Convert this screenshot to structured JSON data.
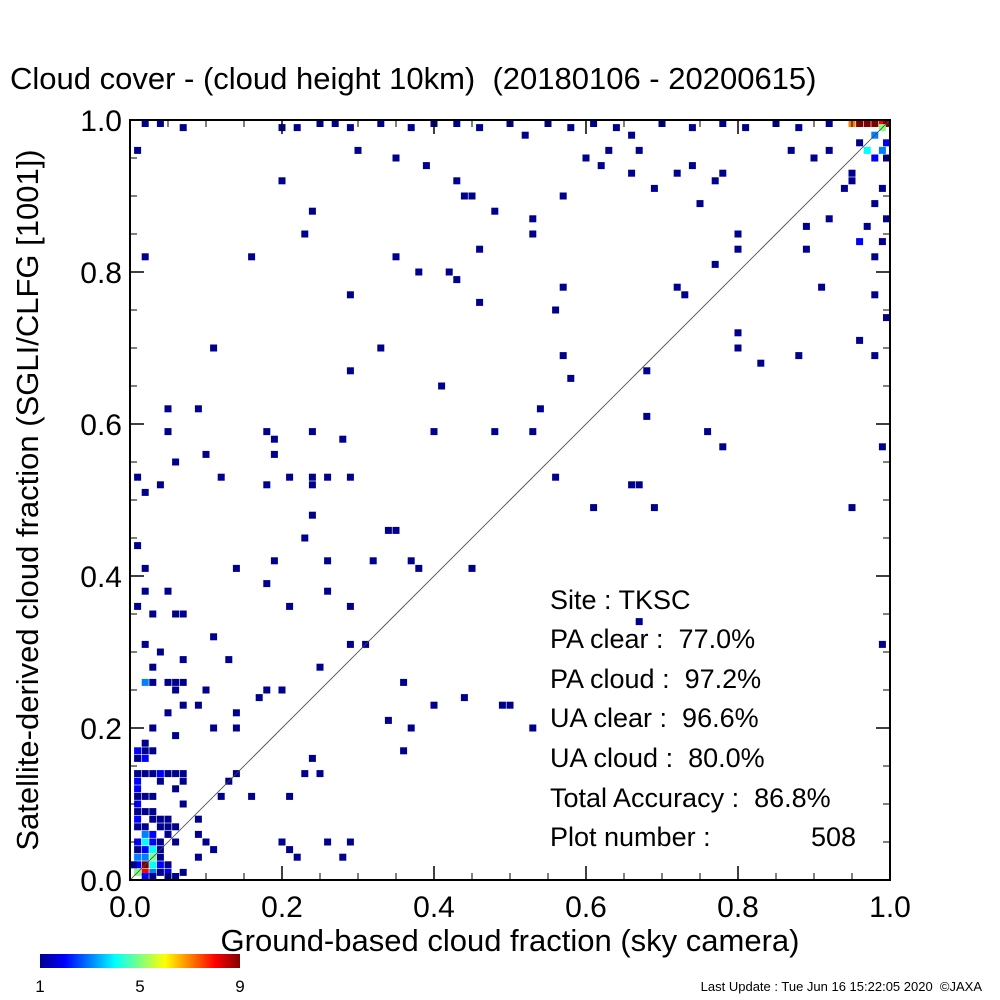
{
  "chart_data": {
    "type": "heatmap",
    "title": "Cloud cover - (cloud height 10km)  (20180106 - 20200615)",
    "xlabel": "Ground-based cloud fraction (sky camera)",
    "ylabel": "Satellite-derived cloud fraction (SGLI/CLFG [1001])",
    "xlim": [
      0,
      1
    ],
    "ylim": [
      0,
      1
    ],
    "x_ticks": [
      "0.0",
      "0.2",
      "0.4",
      "0.6",
      "0.8",
      "1.0"
    ],
    "y_ticks": [
      "0.0",
      "0.2",
      "0.4",
      "0.6",
      "0.8",
      "1.0"
    ],
    "reference_line": "y = x",
    "grid": false,
    "colorbar": {
      "min": 1,
      "max": 9,
      "labels": [
        "1",
        "5",
        "9"
      ]
    },
    "cells": [
      [
        0.02,
        1.0,
        1
      ],
      [
        0.04,
        1.0,
        1
      ],
      [
        0.07,
        0.99,
        1
      ],
      [
        0.01,
        0.96,
        1
      ],
      [
        0.2,
        0.99,
        1
      ],
      [
        0.22,
        0.99,
        1
      ],
      [
        0.25,
        1.0,
        1
      ],
      [
        0.27,
        1.0,
        1
      ],
      [
        0.29,
        0.99,
        1
      ],
      [
        0.33,
        1.0,
        1
      ],
      [
        0.37,
        0.99,
        1
      ],
      [
        0.4,
        1.0,
        1
      ],
      [
        0.43,
        1.0,
        1
      ],
      [
        0.46,
        0.99,
        1
      ],
      [
        0.5,
        1.0,
        1
      ],
      [
        0.52,
        0.98,
        1
      ],
      [
        0.55,
        1.0,
        1
      ],
      [
        0.58,
        0.99,
        1
      ],
      [
        0.61,
        1.0,
        1
      ],
      [
        0.64,
        0.99,
        1
      ],
      [
        0.66,
        0.98,
        1
      ],
      [
        0.7,
        1.0,
        1
      ],
      [
        0.74,
        0.99,
        1
      ],
      [
        0.78,
        1.0,
        1
      ],
      [
        0.81,
        0.99,
        1
      ],
      [
        0.85,
        1.0,
        1
      ],
      [
        0.88,
        0.99,
        1
      ],
      [
        0.92,
        1.0,
        1
      ],
      [
        0.95,
        1.0,
        7
      ],
      [
        0.96,
        1.0,
        9
      ],
      [
        0.97,
        1.0,
        9
      ],
      [
        0.98,
        1.0,
        9
      ],
      [
        0.99,
        1.0,
        8
      ],
      [
        1.0,
        1.0,
        9
      ],
      [
        0.99,
        0.99,
        5
      ],
      [
        0.98,
        0.98,
        3
      ],
      [
        1.0,
        0.97,
        2
      ],
      [
        0.97,
        0.96,
        4
      ],
      [
        0.99,
        0.96,
        3
      ],
      [
        0.96,
        0.97,
        1
      ],
      [
        0.98,
        0.95,
        2
      ],
      [
        1.0,
        0.95,
        1
      ],
      [
        0.95,
        0.93,
        1
      ],
      [
        0.99,
        0.91,
        1
      ],
      [
        0.98,
        0.89,
        1
      ],
      [
        1.0,
        0.87,
        1
      ],
      [
        0.97,
        0.86,
        1
      ],
      [
        0.99,
        0.84,
        1
      ],
      [
        0.96,
        0.84,
        2
      ],
      [
        0.98,
        0.82,
        1
      ],
      [
        0.3,
        0.96,
        1
      ],
      [
        0.35,
        0.95,
        1
      ],
      [
        0.39,
        0.94,
        1
      ],
      [
        0.43,
        0.92,
        1
      ],
      [
        0.44,
        0.9,
        1
      ],
      [
        0.45,
        0.9,
        1
      ],
      [
        0.48,
        0.88,
        1
      ],
      [
        0.53,
        0.87,
        1
      ],
      [
        0.57,
        0.9,
        1
      ],
      [
        0.62,
        0.94,
        1
      ],
      [
        0.66,
        0.93,
        1
      ],
      [
        0.69,
        0.91,
        1
      ],
      [
        0.72,
        0.93,
        1
      ],
      [
        0.75,
        0.89,
        1
      ],
      [
        0.78,
        0.93,
        1
      ],
      [
        0.8,
        0.85,
        1
      ],
      [
        0.89,
        0.86,
        1
      ],
      [
        0.92,
        0.87,
        1
      ],
      [
        0.94,
        0.91,
        1
      ],
      [
        0.6,
        0.95,
        1
      ],
      [
        0.63,
        0.96,
        1
      ],
      [
        0.67,
        0.96,
        1
      ],
      [
        0.74,
        0.94,
        1
      ],
      [
        0.77,
        0.92,
        1
      ],
      [
        0.87,
        0.96,
        1
      ],
      [
        0.9,
        0.95,
        1
      ],
      [
        0.92,
        0.96,
        1
      ],
      [
        0.95,
        0.92,
        1
      ],
      [
        0.2,
        0.92,
        1
      ],
      [
        0.24,
        0.88,
        1
      ],
      [
        0.23,
        0.85,
        1
      ],
      [
        0.16,
        0.82,
        1
      ],
      [
        0.02,
        0.82,
        1
      ],
      [
        0.35,
        0.82,
        1
      ],
      [
        0.38,
        0.8,
        1
      ],
      [
        0.42,
        0.8,
        1
      ],
      [
        0.46,
        0.83,
        1
      ],
      [
        0.43,
        0.79,
        1
      ],
      [
        0.53,
        0.85,
        1
      ],
      [
        0.57,
        0.78,
        1
      ],
      [
        0.46,
        0.76,
        1
      ],
      [
        0.29,
        0.77,
        1
      ],
      [
        0.56,
        0.75,
        1
      ],
      [
        0.72,
        0.78,
        1
      ],
      [
        0.73,
        0.77,
        1
      ],
      [
        0.77,
        0.81,
        1
      ],
      [
        0.8,
        0.83,
        1
      ],
      [
        0.89,
        0.83,
        1
      ],
      [
        0.91,
        0.78,
        1
      ],
      [
        0.98,
        0.77,
        1
      ],
      [
        1.0,
        0.74,
        1
      ],
      [
        0.8,
        0.72,
        1
      ],
      [
        0.8,
        0.7,
        1
      ],
      [
        0.83,
        0.68,
        1
      ],
      [
        0.88,
        0.69,
        1
      ],
      [
        0.96,
        0.71,
        1
      ],
      [
        0.98,
        0.69,
        1
      ],
      [
        0.11,
        0.7,
        1
      ],
      [
        0.33,
        0.7,
        1
      ],
      [
        0.29,
        0.67,
        1
      ],
      [
        0.41,
        0.65,
        1
      ],
      [
        0.57,
        0.69,
        1
      ],
      [
        0.58,
        0.66,
        1
      ],
      [
        0.68,
        0.67,
        1
      ],
      [
        0.54,
        0.62,
        1
      ],
      [
        0.68,
        0.61,
        1
      ],
      [
        0.05,
        0.62,
        1
      ],
      [
        0.09,
        0.62,
        1
      ],
      [
        0.05,
        0.59,
        1
      ],
      [
        0.18,
        0.59,
        1
      ],
      [
        0.19,
        0.58,
        1
      ],
      [
        0.24,
        0.59,
        1
      ],
      [
        0.28,
        0.58,
        1
      ],
      [
        0.4,
        0.59,
        1
      ],
      [
        0.48,
        0.59,
        1
      ],
      [
        0.53,
        0.59,
        1
      ],
      [
        0.76,
        0.59,
        1
      ],
      [
        0.78,
        0.57,
        1
      ],
      [
        0.1,
        0.56,
        1
      ],
      [
        0.06,
        0.55,
        1
      ],
      [
        0.19,
        0.56,
        1
      ],
      [
        0.99,
        0.57,
        1
      ],
      [
        0.01,
        0.53,
        1
      ],
      [
        0.02,
        0.51,
        1
      ],
      [
        0.04,
        0.52,
        1
      ],
      [
        0.12,
        0.53,
        1
      ],
      [
        0.18,
        0.52,
        1
      ],
      [
        0.21,
        0.53,
        1
      ],
      [
        0.24,
        0.53,
        1
      ],
      [
        0.26,
        0.53,
        1
      ],
      [
        0.29,
        0.53,
        1
      ],
      [
        0.24,
        0.52,
        1
      ],
      [
        0.56,
        0.53,
        1
      ],
      [
        0.66,
        0.52,
        1
      ],
      [
        0.67,
        0.52,
        1
      ],
      [
        0.61,
        0.49,
        1
      ],
      [
        0.69,
        0.49,
        1
      ],
      [
        0.95,
        0.49,
        1
      ],
      [
        0.24,
        0.48,
        1
      ],
      [
        0.34,
        0.46,
        1
      ],
      [
        0.35,
        0.46,
        1
      ],
      [
        0.23,
        0.45,
        1
      ],
      [
        0.26,
        0.42,
        1
      ],
      [
        0.32,
        0.42,
        1
      ],
      [
        0.37,
        0.42,
        1
      ],
      [
        0.19,
        0.42,
        1
      ],
      [
        0.01,
        0.44,
        1
      ],
      [
        0.02,
        0.41,
        1
      ],
      [
        0.14,
        0.41,
        1
      ],
      [
        0.38,
        0.41,
        1
      ],
      [
        0.45,
        0.41,
        1
      ],
      [
        0.18,
        0.39,
        1
      ],
      [
        0.02,
        0.38,
        1
      ],
      [
        0.05,
        0.38,
        1
      ],
      [
        0.26,
        0.38,
        1
      ],
      [
        0.01,
        0.36,
        1
      ],
      [
        0.03,
        0.35,
        1
      ],
      [
        0.06,
        0.35,
        1
      ],
      [
        0.07,
        0.35,
        1
      ],
      [
        0.21,
        0.36,
        1
      ],
      [
        0.29,
        0.36,
        1
      ],
      [
        0.67,
        0.34,
        1
      ],
      [
        0.02,
        0.31,
        1
      ],
      [
        0.11,
        0.32,
        1
      ],
      [
        0.29,
        0.31,
        1
      ],
      [
        0.31,
        0.31,
        1
      ],
      [
        0.99,
        0.31,
        1
      ],
      [
        0.04,
        0.3,
        1
      ],
      [
        0.07,
        0.29,
        1
      ],
      [
        0.13,
        0.29,
        1
      ],
      [
        0.03,
        0.28,
        1
      ],
      [
        0.25,
        0.28,
        1
      ],
      [
        0.02,
        0.26,
        3
      ],
      [
        0.03,
        0.26,
        1
      ],
      [
        0.05,
        0.26,
        1
      ],
      [
        0.06,
        0.26,
        1
      ],
      [
        0.07,
        0.26,
        1
      ],
      [
        0.06,
        0.25,
        1
      ],
      [
        0.1,
        0.25,
        1
      ],
      [
        0.18,
        0.25,
        1
      ],
      [
        0.2,
        0.25,
        1
      ],
      [
        0.17,
        0.24,
        1
      ],
      [
        0.36,
        0.26,
        1
      ],
      [
        0.44,
        0.24,
        1
      ],
      [
        0.07,
        0.23,
        1
      ],
      [
        0.09,
        0.23,
        1
      ],
      [
        0.4,
        0.23,
        1
      ],
      [
        0.49,
        0.23,
        1
      ],
      [
        0.5,
        0.23,
        1
      ],
      [
        0.05,
        0.22,
        1
      ],
      [
        0.14,
        0.22,
        1
      ],
      [
        0.34,
        0.21,
        1
      ],
      [
        0.37,
        0.2,
        1
      ],
      [
        0.53,
        0.2,
        1
      ],
      [
        0.03,
        0.2,
        1
      ],
      [
        0.11,
        0.2,
        1
      ],
      [
        0.14,
        0.2,
        1
      ],
      [
        0.06,
        0.19,
        1
      ],
      [
        0.02,
        0.18,
        1
      ],
      [
        0.36,
        0.17,
        1
      ],
      [
        0.01,
        0.17,
        2
      ],
      [
        0.02,
        0.17,
        1
      ],
      [
        0.03,
        0.17,
        1
      ],
      [
        0.01,
        0.16,
        1
      ],
      [
        0.02,
        0.16,
        2
      ],
      [
        0.02,
        0.14,
        1
      ],
      [
        0.01,
        0.14,
        1
      ],
      [
        0.03,
        0.14,
        1
      ],
      [
        0.04,
        0.14,
        2
      ],
      [
        0.05,
        0.14,
        1
      ],
      [
        0.06,
        0.14,
        1
      ],
      [
        0.07,
        0.14,
        1
      ],
      [
        0.24,
        0.16,
        1
      ],
      [
        0.23,
        0.14,
        1
      ],
      [
        0.25,
        0.14,
        1
      ],
      [
        0.14,
        0.14,
        1
      ],
      [
        0.13,
        0.13,
        1
      ],
      [
        0.01,
        0.13,
        2
      ],
      [
        0.04,
        0.13,
        1
      ],
      [
        0.07,
        0.13,
        1
      ],
      [
        0.01,
        0.12,
        2
      ],
      [
        0.02,
        0.11,
        1
      ],
      [
        0.06,
        0.12,
        1
      ],
      [
        0.01,
        0.11,
        1
      ],
      [
        0.03,
        0.11,
        1
      ],
      [
        0.07,
        0.1,
        1
      ],
      [
        0.12,
        0.11,
        1
      ],
      [
        0.16,
        0.11,
        1
      ],
      [
        0.21,
        0.11,
        1
      ],
      [
        0.01,
        0.1,
        2
      ],
      [
        0.01,
        0.09,
        1
      ],
      [
        0.02,
        0.09,
        1
      ],
      [
        0.03,
        0.09,
        1
      ],
      [
        0.03,
        0.08,
        1
      ],
      [
        0.01,
        0.08,
        2
      ],
      [
        0.04,
        0.08,
        1
      ],
      [
        0.05,
        0.08,
        1
      ],
      [
        0.09,
        0.08,
        1
      ],
      [
        0.01,
        0.07,
        1
      ],
      [
        0.02,
        0.07,
        1
      ],
      [
        0.04,
        0.07,
        1
      ],
      [
        0.05,
        0.07,
        1
      ],
      [
        0.06,
        0.07,
        1
      ],
      [
        0.09,
        0.06,
        1
      ],
      [
        0.02,
        0.06,
        3
      ],
      [
        0.03,
        0.06,
        2
      ],
      [
        0.05,
        0.06,
        1
      ],
      [
        0.01,
        0.05,
        2
      ],
      [
        0.02,
        0.05,
        4
      ],
      [
        0.03,
        0.05,
        2
      ],
      [
        0.04,
        0.05,
        1
      ],
      [
        0.06,
        0.05,
        1
      ],
      [
        0.1,
        0.05,
        1
      ],
      [
        0.2,
        0.05,
        1
      ],
      [
        0.21,
        0.04,
        1
      ],
      [
        0.26,
        0.05,
        1
      ],
      [
        0.29,
        0.05,
        1
      ],
      [
        0.01,
        0.04,
        1
      ],
      [
        0.02,
        0.04,
        2
      ],
      [
        0.03,
        0.04,
        4
      ],
      [
        0.04,
        0.04,
        1
      ],
      [
        0.01,
        0.03,
        3
      ],
      [
        0.02,
        0.03,
        3
      ],
      [
        0.03,
        0.03,
        5
      ],
      [
        0.04,
        0.03,
        1
      ],
      [
        0.09,
        0.03,
        1
      ],
      [
        0.11,
        0.04,
        1
      ],
      [
        0.22,
        0.03,
        1
      ],
      [
        0.28,
        0.03,
        1
      ],
      [
        0.01,
        0.02,
        2
      ],
      [
        0.02,
        0.02,
        9
      ],
      [
        0.03,
        0.02,
        4
      ],
      [
        0.04,
        0.02,
        2
      ],
      [
        0.05,
        0.02,
        1
      ],
      [
        0.0,
        0.02,
        1
      ],
      [
        0.01,
        0.01,
        5
      ],
      [
        0.02,
        0.01,
        8
      ],
      [
        0.03,
        0.01,
        3
      ],
      [
        0.04,
        0.01,
        1
      ],
      [
        0.05,
        0.01,
        2
      ],
      [
        0.07,
        0.01,
        1
      ],
      [
        0.02,
        0.0,
        2
      ],
      [
        0.03,
        0.0,
        1
      ],
      [
        0.05,
        0.0,
        1
      ],
      [
        0.06,
        0.0,
        1
      ]
    ],
    "annotations": {
      "site": "Site : TKSC",
      "pa_clear": "PA clear :  77.0%",
      "pa_cloud": "PA cloud :  97.2%",
      "ua_clear": "UA clear :  96.6%",
      "ua_cloud": "UA cloud :  80.0%",
      "total_accuracy": "Total Accuracy :  86.8%",
      "plot_number_label": "Plot number :",
      "plot_number_value": "508"
    }
  },
  "footer": {
    "last_update": "Last Update : Tue Jun 16 15:22:05 2020  ©JAXA"
  }
}
